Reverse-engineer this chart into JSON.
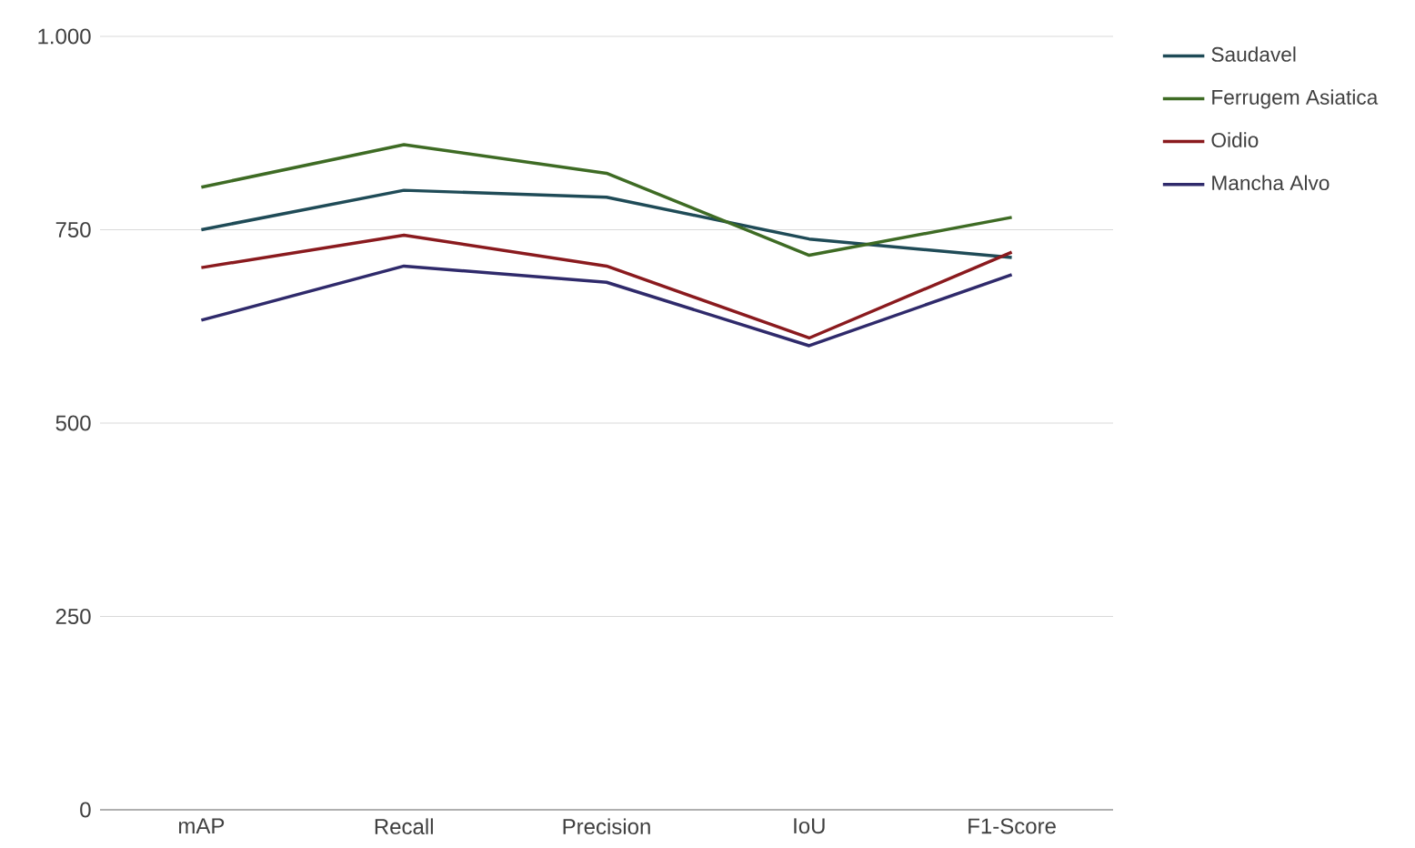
{
  "chart_data": {
    "type": "line",
    "categories": [
      "mAP",
      "Recall",
      "Precision",
      "IoU",
      "F1-Score"
    ],
    "series": [
      {
        "name": "Saudavel",
        "color": "#1f4b57",
        "values": [
          750,
          801,
          792,
          738,
          714
        ]
      },
      {
        "name": "Ferrugem Asiatica",
        "color": "#3e6b24",
        "values": [
          805,
          860,
          823,
          717,
          766
        ]
      },
      {
        "name": "Oidio",
        "color": "#8a1a1e",
        "values": [
          701,
          743,
          703,
          610,
          721
        ]
      },
      {
        "name": "Mancha Alvo",
        "color": "#2f2a6b",
        "values": [
          633,
          703,
          682,
          600,
          692
        ]
      }
    ],
    "ylim": [
      0,
      1000
    ],
    "yticks": [
      0,
      250,
      500,
      750,
      {
        "value": 1000,
        "label": "1.000"
      }
    ],
    "grid": "y",
    "legend": "right",
    "marker": "none",
    "line_style": "solid"
  }
}
